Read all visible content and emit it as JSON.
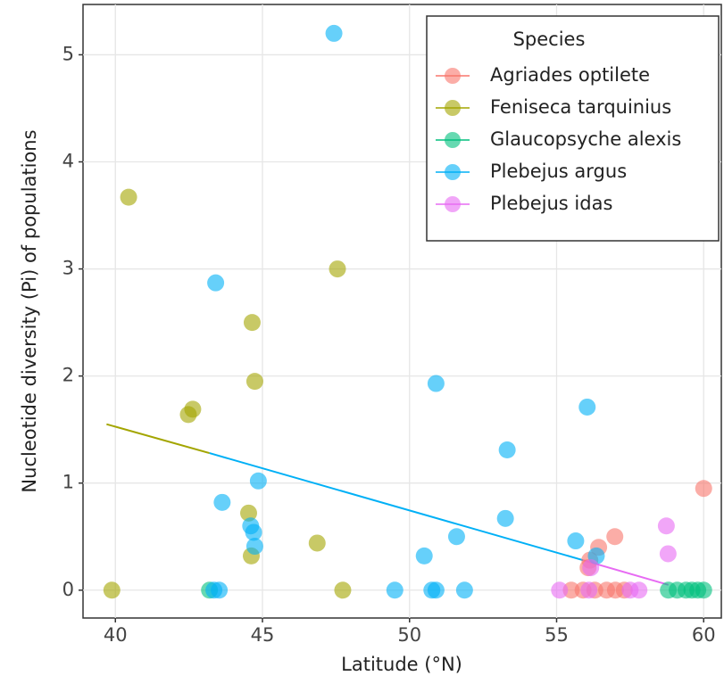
{
  "chart_data": {
    "type": "scatter",
    "x_label": "Latitude (°N)",
    "y_label": "Nucleotide diversity (Pi) of populations",
    "legend_title": "Species",
    "legend_position": "top-right",
    "grid": true,
    "xlim": [
      38.9,
      60.6
    ],
    "ylim": [
      -0.26,
      5.47
    ],
    "xticks": [
      40,
      45,
      50,
      55,
      60
    ],
    "yticks": [
      0,
      1,
      2,
      3,
      4,
      5
    ],
    "series": [
      {
        "name": "Agriades optilete",
        "color": "#F8766D",
        "x": [
          60.0,
          56.98,
          56.43,
          56.13,
          56.07,
          55.5,
          55.9,
          56.3,
          56.7,
          57.0,
          57.3
        ],
        "y": [
          0.95,
          0.5,
          0.4,
          0.28,
          0.21,
          0,
          0,
          0,
          0,
          0,
          0
        ]
      },
      {
        "name": "Feniseca tarquinius",
        "color": "#A3A500",
        "x": [
          40.45,
          47.55,
          44.65,
          44.74,
          42.48,
          42.63,
          44.53,
          44.62,
          46.86,
          39.88,
          47.73
        ],
        "y": [
          3.67,
          3.0,
          2.5,
          1.95,
          1.64,
          1.69,
          0.72,
          0.32,
          0.44,
          0,
          0
        ]
      },
      {
        "name": "Glaucopsyche alexis",
        "color": "#00BF7D",
        "x": [
          43.2,
          58.8,
          59.1,
          59.4,
          59.6,
          59.8,
          60.0
        ],
        "y": [
          0,
          0,
          0,
          0,
          0,
          0,
          0
        ]
      },
      {
        "name": "Plebejus argus",
        "color": "#00B0F6",
        "x": [
          47.43,
          43.41,
          50.9,
          56.04,
          53.32,
          44.86,
          43.63,
          53.26,
          44.6,
          44.7,
          44.74,
          51.6,
          50.5,
          55.65,
          56.35,
          43.35,
          43.53,
          49.5,
          50.76,
          50.9,
          51.87
        ],
        "y": [
          5.2,
          2.87,
          1.93,
          1.71,
          1.31,
          1.02,
          0.82,
          0.67,
          0.6,
          0.54,
          0.41,
          0.5,
          0.32,
          0.46,
          0.32,
          0,
          0,
          0,
          0,
          0,
          0
        ]
      },
      {
        "name": "Plebejus idas",
        "color": "#E76BF3",
        "x": [
          58.73,
          58.79,
          56.16,
          55.1,
          56.1,
          57.5,
          57.8
        ],
        "y": [
          0.6,
          0.34,
          0.21,
          0,
          0,
          0,
          0
        ]
      }
    ],
    "trend_lines": [
      {
        "color": "#A3A500",
        "x": [
          39.7,
          43.2
        ],
        "y": [
          1.55,
          1.28
        ]
      },
      {
        "color": "#00B0F6",
        "x": [
          43.2,
          55.9
        ],
        "y": [
          1.28,
          0.28
        ]
      },
      {
        "color": "#E76BF3",
        "x": [
          55.9,
          58.8
        ],
        "y": [
          0.28,
          0.05
        ]
      }
    ]
  }
}
